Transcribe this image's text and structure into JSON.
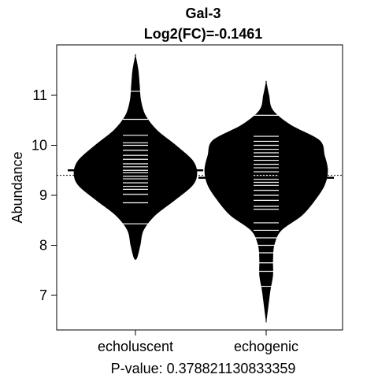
{
  "chart_data": {
    "type": "beanplot",
    "title": "Gal-3",
    "subtitle": "Log2(FC)=-0.1461",
    "ylabel": "Abundance",
    "xlabel": "P-value: 0.378821130833359",
    "categories": [
      "echoluscent",
      "echogenic"
    ],
    "y_ticks": [
      7,
      8,
      9,
      10,
      11
    ],
    "ylim": [
      6.3,
      11.95
    ],
    "overall_mean": 9.4,
    "series": [
      {
        "name": "echoluscent",
        "mean": 9.5,
        "density": [
          [
            7.75,
            0.02
          ],
          [
            8.0,
            0.07
          ],
          [
            8.3,
            0.12
          ],
          [
            8.6,
            0.3
          ],
          [
            8.9,
            0.6
          ],
          [
            9.2,
            0.88
          ],
          [
            9.45,
            0.95
          ],
          [
            9.7,
            0.88
          ],
          [
            10.0,
            0.62
          ],
          [
            10.3,
            0.33
          ],
          [
            10.6,
            0.15
          ],
          [
            10.9,
            0.08
          ],
          [
            11.2,
            0.06
          ],
          [
            11.5,
            0.04
          ],
          [
            11.78,
            0.0
          ]
        ],
        "points": [
          8.43,
          8.85,
          9.02,
          9.12,
          9.18,
          9.25,
          9.33,
          9.38,
          9.45,
          9.5,
          9.57,
          9.63,
          9.72,
          9.8,
          9.9,
          10.0,
          10.05,
          10.2,
          10.52,
          11.08
        ]
      },
      {
        "name": "echogenic",
        "mean": 9.35,
        "density": [
          [
            6.5,
            0.0
          ],
          [
            6.8,
            0.03
          ],
          [
            7.1,
            0.06
          ],
          [
            7.4,
            0.1
          ],
          [
            7.7,
            0.1
          ],
          [
            8.0,
            0.12
          ],
          [
            8.3,
            0.23
          ],
          [
            8.6,
            0.55
          ],
          [
            8.9,
            0.75
          ],
          [
            9.2,
            0.9
          ],
          [
            9.5,
            0.95
          ],
          [
            9.8,
            0.9
          ],
          [
            10.1,
            0.82
          ],
          [
            10.4,
            0.38
          ],
          [
            10.7,
            0.1
          ],
          [
            11.0,
            0.04
          ],
          [
            11.25,
            0.0
          ]
        ],
        "points": [
          7.18,
          7.48,
          7.65,
          7.85,
          8.0,
          8.15,
          8.3,
          8.45,
          8.72,
          8.78,
          8.9,
          9.0,
          9.1,
          9.2,
          9.26,
          9.32,
          9.4,
          9.47,
          9.55,
          9.62,
          9.7,
          9.78,
          9.85,
          9.92,
          10.0,
          10.08,
          10.18,
          10.6
        ]
      }
    ],
    "colors": {
      "bean": "#000000",
      "points": "#ffffff",
      "frame": "#000000",
      "background": "#ffffff"
    }
  }
}
